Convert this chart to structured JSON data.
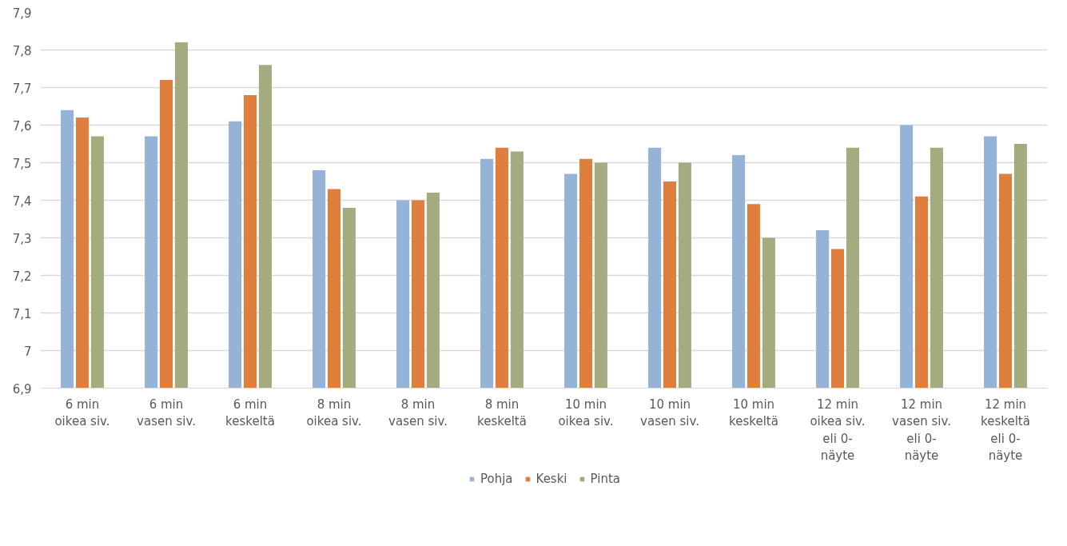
{
  "chart_data": {
    "type": "bar",
    "categories": [
      "6 min oikea siv.",
      "6 min vasen siv.",
      "6 min keskeltä",
      "8 min oikea siv.",
      "8 min vasen siv.",
      "8 min keskeltä",
      "10 min oikea siv.",
      "10 min vasen siv.",
      "10 min keskeltä",
      "12 min oikea siv. eli 0-näyte",
      "12 min vasen siv. eli 0-näyte",
      "12 min keskeltä eli 0-näyte"
    ],
    "series": [
      {
        "name": "Pohja",
        "color": "#95b3d7",
        "values": [
          7.64,
          7.57,
          7.61,
          7.48,
          7.4,
          7.51,
          7.47,
          7.54,
          7.52,
          7.32,
          7.6,
          7.57
        ]
      },
      {
        "name": "Keski",
        "color": "#e07e3e",
        "values": [
          7.62,
          7.72,
          7.68,
          7.43,
          7.4,
          7.54,
          7.51,
          7.45,
          7.39,
          7.27,
          7.41,
          7.47
        ]
      },
      {
        "name": "Pinta",
        "color": "#a4ab7f",
        "values": [
          7.57,
          7.82,
          7.76,
          7.38,
          7.42,
          7.53,
          7.5,
          7.5,
          7.3,
          7.54,
          7.54,
          7.55
        ]
      }
    ],
    "ylim": [
      6.9,
      7.9
    ],
    "yticks": [
      {
        "value": 6.9,
        "label": "6,9"
      },
      {
        "value": 7.0,
        "label": "7"
      },
      {
        "value": 7.1,
        "label": "7,1"
      },
      {
        "value": 7.2,
        "label": "7,2"
      },
      {
        "value": 7.3,
        "label": "7,3"
      },
      {
        "value": 7.4,
        "label": "7,4"
      },
      {
        "value": 7.5,
        "label": "7,5"
      },
      {
        "value": 7.6,
        "label": "7,6"
      },
      {
        "value": 7.7,
        "label": "7,7"
      },
      {
        "value": 7.8,
        "label": "7,8"
      },
      {
        "value": 7.9,
        "label": "7,9"
      }
    ],
    "grid": "y",
    "legend": "bottom"
  }
}
